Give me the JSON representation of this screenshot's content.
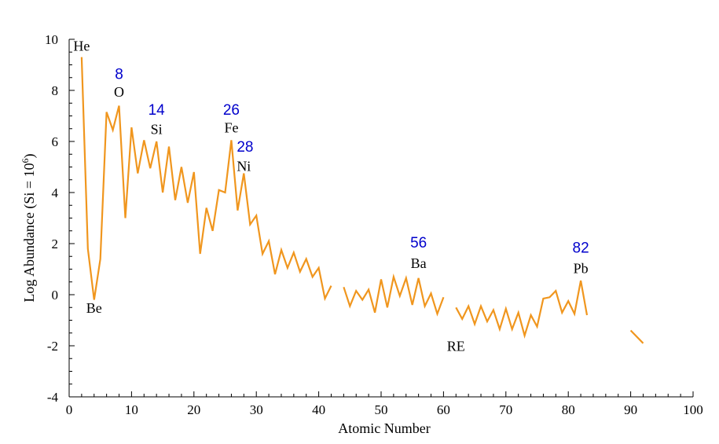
{
  "chart_data": {
    "type": "line",
    "xlabel": "Atomic Number",
    "ylabel": "Log Abundance (Si = 10",
    "ylabel_sup": "6",
    "ylabel_close": ")",
    "xlim": [
      0,
      100
    ],
    "ylim": [
      -4,
      10
    ],
    "xticks": [
      0,
      10,
      20,
      30,
      40,
      50,
      60,
      70,
      80,
      90,
      100
    ],
    "yticks": [
      -4,
      -2,
      0,
      2,
      4,
      6,
      8,
      10
    ],
    "line_color": "#f0961e",
    "number_color": "#0000cc",
    "series": [
      {
        "segments": [
          [
            [
              2,
              9.3
            ],
            [
              3,
              1.8
            ],
            [
              4,
              -0.2
            ],
            [
              5,
              1.4
            ],
            [
              6,
              7.15
            ],
            [
              7,
              6.45
            ],
            [
              8,
              7.4
            ],
            [
              9,
              3.0
            ],
            [
              10,
              6.55
            ],
            [
              11,
              4.75
            ],
            [
              12,
              6.05
            ],
            [
              13,
              4.95
            ],
            [
              14,
              6.0
            ],
            [
              15,
              4.0
            ],
            [
              16,
              5.8
            ],
            [
              17,
              3.7
            ],
            [
              18,
              5.0
            ],
            [
              19,
              3.6
            ],
            [
              20,
              4.8
            ],
            [
              21,
              1.6
            ],
            [
              22,
              3.4
            ],
            [
              23,
              2.5
            ],
            [
              24,
              4.1
            ],
            [
              25,
              4.0
            ],
            [
              26,
              6.05
            ],
            [
              27,
              3.3
            ],
            [
              28,
              4.75
            ],
            [
              29,
              2.75
            ],
            [
              30,
              3.1
            ],
            [
              31,
              1.6
            ],
            [
              32,
              2.1
            ],
            [
              33,
              0.8
            ],
            [
              34,
              1.75
            ],
            [
              35,
              1.05
            ],
            [
              36,
              1.65
            ],
            [
              37,
              0.9
            ],
            [
              38,
              1.4
            ],
            [
              39,
              0.7
            ],
            [
              40,
              1.05
            ],
            [
              41,
              -0.15
            ],
            [
              42,
              0.35
            ]
          ],
          [
            [
              44,
              0.3
            ],
            [
              45,
              -0.45
            ],
            [
              46,
              0.15
            ],
            [
              47,
              -0.2
            ],
            [
              48,
              0.2
            ],
            [
              49,
              -0.7
            ],
            [
              50,
              0.6
            ],
            [
              51,
              -0.5
            ],
            [
              52,
              0.7
            ],
            [
              53,
              -0.05
            ],
            [
              54,
              0.65
            ],
            [
              55,
              -0.4
            ],
            [
              56,
              0.65
            ],
            [
              57,
              -0.45
            ],
            [
              58,
              0.05
            ],
            [
              59,
              -0.75
            ],
            [
              60,
              -0.1
            ]
          ],
          [
            [
              62,
              -0.5
            ],
            [
              63,
              -0.95
            ],
            [
              64,
              -0.45
            ],
            [
              65,
              -1.15
            ],
            [
              66,
              -0.45
            ],
            [
              67,
              -1.05
            ],
            [
              68,
              -0.6
            ],
            [
              69,
              -1.35
            ],
            [
              70,
              -0.55
            ],
            [
              71,
              -1.35
            ],
            [
              72,
              -0.7
            ],
            [
              73,
              -1.6
            ],
            [
              74,
              -0.8
            ],
            [
              75,
              -1.25
            ],
            [
              76,
              -0.15
            ],
            [
              77,
              -0.1
            ],
            [
              78,
              0.15
            ],
            [
              79,
              -0.7
            ],
            [
              80,
              -0.25
            ],
            [
              81,
              -0.75
            ],
            [
              82,
              0.55
            ],
            [
              83,
              -0.8
            ]
          ],
          [
            [
              90,
              -1.4
            ],
            [
              92,
              -1.9
            ]
          ]
        ]
      }
    ],
    "annotations": [
      {
        "text": "He",
        "x": 2,
        "y": 9.55,
        "kind": "element"
      },
      {
        "text": "Be",
        "x": 4,
        "y": -0.7,
        "kind": "element"
      },
      {
        "text": "O",
        "x": 8,
        "y": 7.75,
        "kind": "element"
      },
      {
        "text": "8",
        "x": 8,
        "y": 8.45,
        "kind": "number"
      },
      {
        "text": "Si",
        "x": 14,
        "y": 6.3,
        "kind": "element"
      },
      {
        "text": "14",
        "x": 14,
        "y": 7.05,
        "kind": "number"
      },
      {
        "text": "Fe",
        "x": 26,
        "y": 6.35,
        "kind": "element"
      },
      {
        "text": "26",
        "x": 26,
        "y": 7.05,
        "kind": "number"
      },
      {
        "text": "Ni",
        "x": 28,
        "y": 4.85,
        "kind": "element"
      },
      {
        "text": "28",
        "x": 28.2,
        "y": 5.6,
        "kind": "number"
      },
      {
        "text": "Ba",
        "x": 56,
        "y": 1.05,
        "kind": "element"
      },
      {
        "text": "56",
        "x": 56,
        "y": 1.85,
        "kind": "number"
      },
      {
        "text": "RE",
        "x": 62,
        "y": -2.2,
        "kind": "element"
      },
      {
        "text": "Pb",
        "x": 82,
        "y": 0.85,
        "kind": "element"
      },
      {
        "text": "82",
        "x": 82,
        "y": 1.65,
        "kind": "number"
      }
    ]
  }
}
